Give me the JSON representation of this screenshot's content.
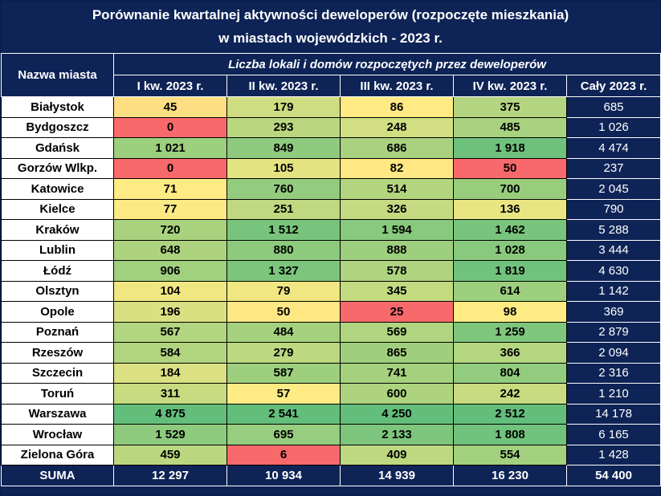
{
  "chart_data": {
    "type": "table",
    "title": [
      "Porównanie kwartalnej aktywności deweloperów (rozpoczęte mieszkania)",
      "w miastach wojewódzkich - 2023 r."
    ],
    "city_header": "Nazwa miasta",
    "group_header": "Liczba lokali i domów rozpoczętych przez deweloperów",
    "columns": [
      "I kw. 2023 r.",
      "II kw. 2023 r.",
      "III kw. 2023 r.",
      "IV kw. 2023 r.",
      "Cały 2023 r."
    ],
    "rows": [
      {
        "city": "Białystok",
        "values": [
          45,
          179,
          86,
          375
        ],
        "display": [
          "45",
          "179",
          "86",
          "375"
        ],
        "total": "685"
      },
      {
        "city": "Bydgoszcz",
        "values": [
          0,
          293,
          248,
          485
        ],
        "display": [
          "0",
          "293",
          "248",
          "485"
        ],
        "total": "1 026"
      },
      {
        "city": "Gdańsk",
        "values": [
          1021,
          849,
          686,
          1918
        ],
        "display": [
          "1 021",
          "849",
          "686",
          "1 918"
        ],
        "total": "4 474"
      },
      {
        "city": "Gorzów Wlkp.",
        "values": [
          0,
          105,
          82,
          50
        ],
        "display": [
          "0",
          "105",
          "82",
          "50"
        ],
        "total": "237"
      },
      {
        "city": "Katowice",
        "values": [
          71,
          760,
          514,
          700
        ],
        "display": [
          "71",
          "760",
          "514",
          "700"
        ],
        "total": "2 045"
      },
      {
        "city": "Kielce",
        "values": [
          77,
          251,
          326,
          136
        ],
        "display": [
          "77",
          "251",
          "326",
          "136"
        ],
        "total": "790"
      },
      {
        "city": "Kraków",
        "values": [
          720,
          1512,
          1594,
          1462
        ],
        "display": [
          "720",
          "1 512",
          "1 594",
          "1 462"
        ],
        "total": "5 288"
      },
      {
        "city": "Lublin",
        "values": [
          648,
          880,
          888,
          1028
        ],
        "display": [
          "648",
          "880",
          "888",
          "1 028"
        ],
        "total": "3 444"
      },
      {
        "city": "Łódź",
        "values": [
          906,
          1327,
          578,
          1819
        ],
        "display": [
          "906",
          "1 327",
          "578",
          "1 819"
        ],
        "total": "4 630"
      },
      {
        "city": "Olsztyn",
        "values": [
          104,
          79,
          345,
          614
        ],
        "display": [
          "104",
          "79",
          "345",
          "614"
        ],
        "total": "1 142"
      },
      {
        "city": "Opole",
        "values": [
          196,
          50,
          25,
          98
        ],
        "display": [
          "196",
          "50",
          "25",
          "98"
        ],
        "total": "369"
      },
      {
        "city": "Poznań",
        "values": [
          567,
          484,
          569,
          1259
        ],
        "display": [
          "567",
          "484",
          "569",
          "1 259"
        ],
        "total": "2 879"
      },
      {
        "city": "Rzeszów",
        "values": [
          584,
          279,
          865,
          366
        ],
        "display": [
          "584",
          "279",
          "865",
          "366"
        ],
        "total": "2 094"
      },
      {
        "city": "Szczecin",
        "values": [
          184,
          587,
          741,
          804
        ],
        "display": [
          "184",
          "587",
          "741",
          "804"
        ],
        "total": "2 316"
      },
      {
        "city": "Toruń",
        "values": [
          311,
          57,
          600,
          242
        ],
        "display": [
          "311",
          "57",
          "600",
          "242"
        ],
        "total": "1 210"
      },
      {
        "city": "Warszawa",
        "values": [
          4875,
          2541,
          4250,
          2512
        ],
        "display": [
          "4 875",
          "2 541",
          "4 250",
          "2 512"
        ],
        "total": "14 178"
      },
      {
        "city": "Wrocław",
        "values": [
          1529,
          695,
          2133,
          1808
        ],
        "display": [
          "1 529",
          "695",
          "2 133",
          "1 808"
        ],
        "total": "6 165"
      },
      {
        "city": "Zielona Góra",
        "values": [
          459,
          6,
          409,
          554
        ],
        "display": [
          "459",
          "6",
          "409",
          "554"
        ],
        "total": "1 428"
      }
    ],
    "summary": {
      "label": "SUMA",
      "values": [
        "12 297",
        "10 934",
        "14 939",
        "16 230",
        "54 400"
      ]
    },
    "colors": {
      "header_bg": "#0e2356",
      "scale_low": "#f8696b",
      "scale_mid": "#ffeb84",
      "scale_high": "#63be7b"
    }
  }
}
